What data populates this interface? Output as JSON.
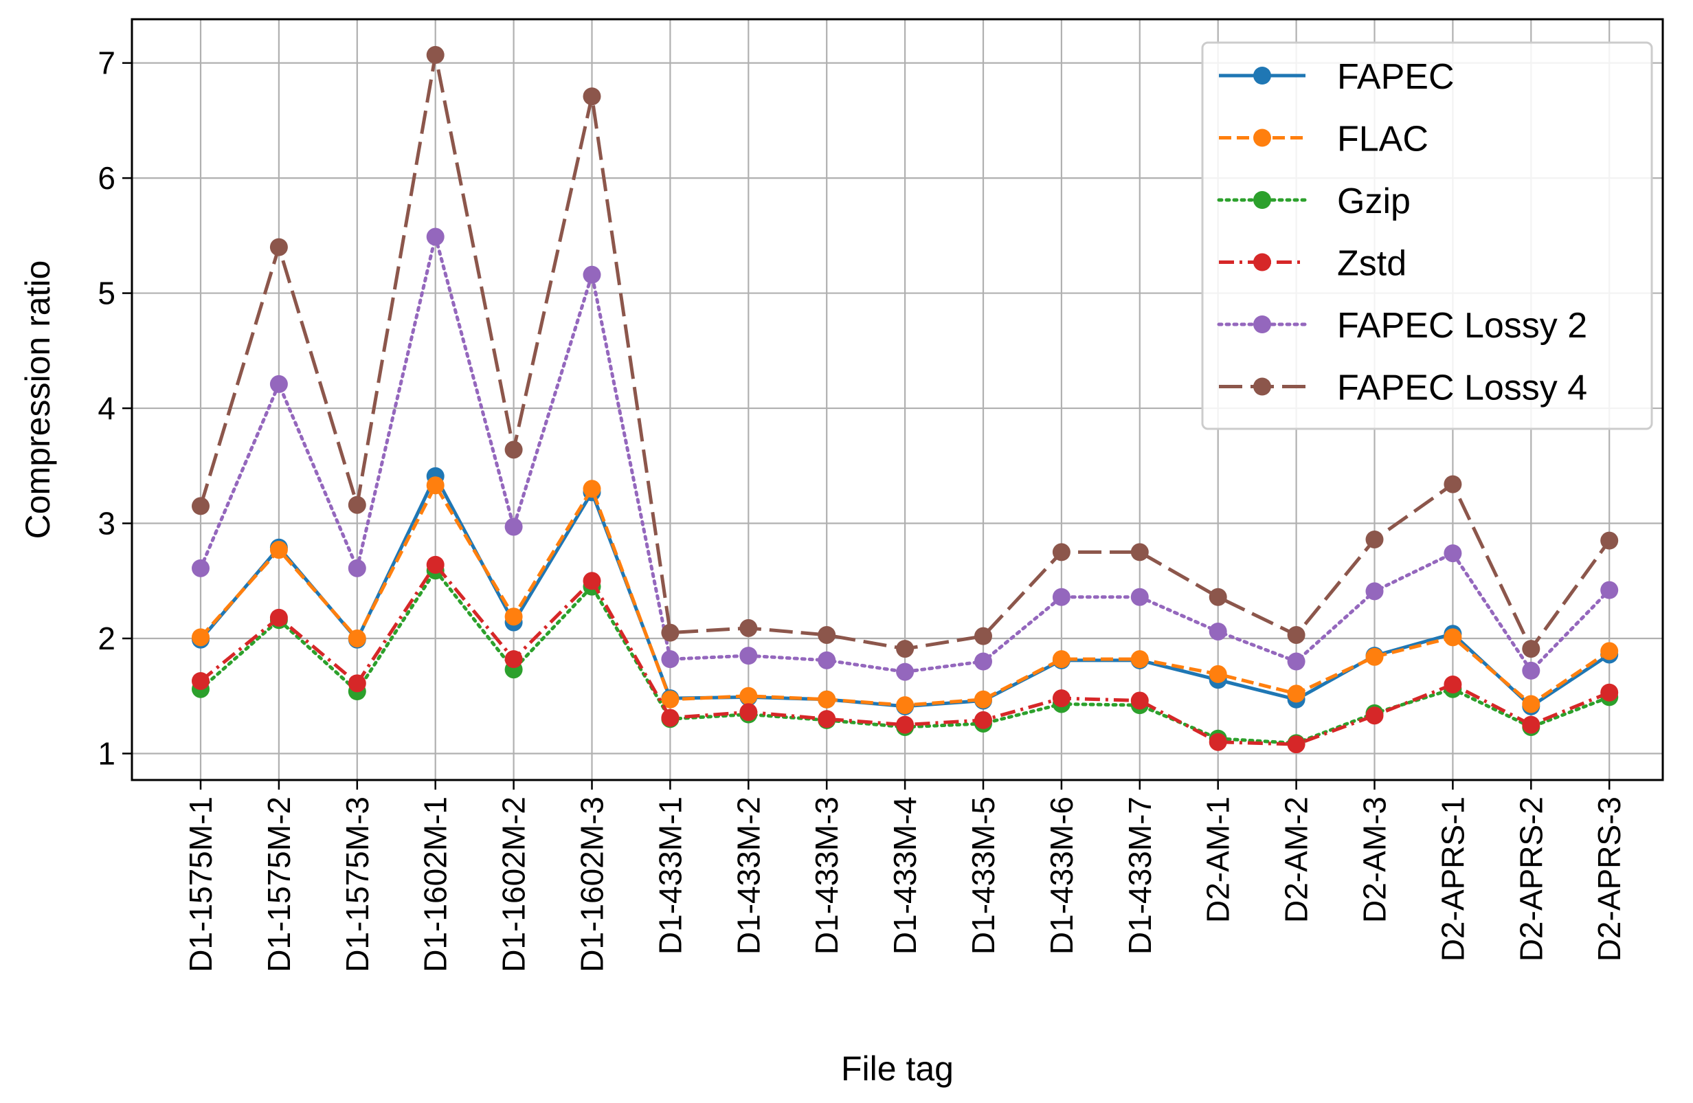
{
  "chart_data": {
    "type": "line",
    "xlabel": "File tag",
    "ylabel": "Compression ratio",
    "categories": [
      "D1-1575M-1",
      "D1-1575M-2",
      "D1-1575M-3",
      "D1-1602M-1",
      "D1-1602M-2",
      "D1-1602M-3",
      "D1-433M-1",
      "D1-433M-2",
      "D1-433M-3",
      "D1-433M-4",
      "D1-433M-5",
      "D1-433M-6",
      "D1-433M-7",
      "D2-AM-1",
      "D2-AM-2",
      "D2-AM-3",
      "D2-APRS-1",
      "D2-APRS-2",
      "D2-APRS-3"
    ],
    "ylim": [
      0.77,
      7.38
    ],
    "yticks": [
      1,
      2,
      3,
      4,
      5,
      6,
      7
    ],
    "grid": true,
    "legend_position": "top-right",
    "series": [
      {
        "name": "FAPEC",
        "color": "#1f77b4",
        "dash": "solid",
        "values": [
          1.99,
          2.79,
          1.99,
          3.41,
          2.14,
          3.27,
          1.48,
          1.49,
          1.47,
          1.41,
          1.46,
          1.81,
          1.81,
          1.64,
          1.47,
          1.85,
          2.04,
          1.41,
          1.86
        ]
      },
      {
        "name": "FLAC",
        "color": "#ff7f0e",
        "dash": "dashed",
        "values": [
          2.01,
          2.77,
          2.0,
          3.33,
          2.19,
          3.3,
          1.47,
          1.5,
          1.47,
          1.42,
          1.47,
          1.82,
          1.82,
          1.69,
          1.52,
          1.84,
          2.01,
          1.43,
          1.89
        ]
      },
      {
        "name": "Gzip",
        "color": "#2ca02c",
        "dash": "dotted",
        "values": [
          1.56,
          2.16,
          1.54,
          2.59,
          1.73,
          2.45,
          1.3,
          1.34,
          1.29,
          1.23,
          1.26,
          1.43,
          1.42,
          1.13,
          1.09,
          1.35,
          1.56,
          1.23,
          1.49
        ]
      },
      {
        "name": "Zstd",
        "color": "#d62728",
        "dash": "dashdot",
        "values": [
          1.63,
          2.18,
          1.61,
          2.64,
          1.82,
          2.5,
          1.31,
          1.36,
          1.3,
          1.25,
          1.29,
          1.48,
          1.46,
          1.1,
          1.08,
          1.33,
          1.6,
          1.25,
          1.53
        ]
      },
      {
        "name": "FAPEC Lossy 2",
        "color": "#9467bd",
        "dash": "dotted",
        "values": [
          2.61,
          4.21,
          2.61,
          5.49,
          2.97,
          5.16,
          1.82,
          1.85,
          1.81,
          1.71,
          1.8,
          2.36,
          2.36,
          2.06,
          1.8,
          2.41,
          2.74,
          1.72,
          2.42
        ]
      },
      {
        "name": "FAPEC Lossy 4",
        "color": "#8c564b",
        "dash": "longdash",
        "values": [
          3.15,
          5.4,
          3.16,
          7.07,
          3.64,
          6.71,
          2.05,
          2.09,
          2.03,
          1.91,
          2.02,
          2.75,
          2.75,
          2.36,
          2.03,
          2.86,
          3.34,
          1.91,
          2.85
        ]
      }
    ]
  }
}
